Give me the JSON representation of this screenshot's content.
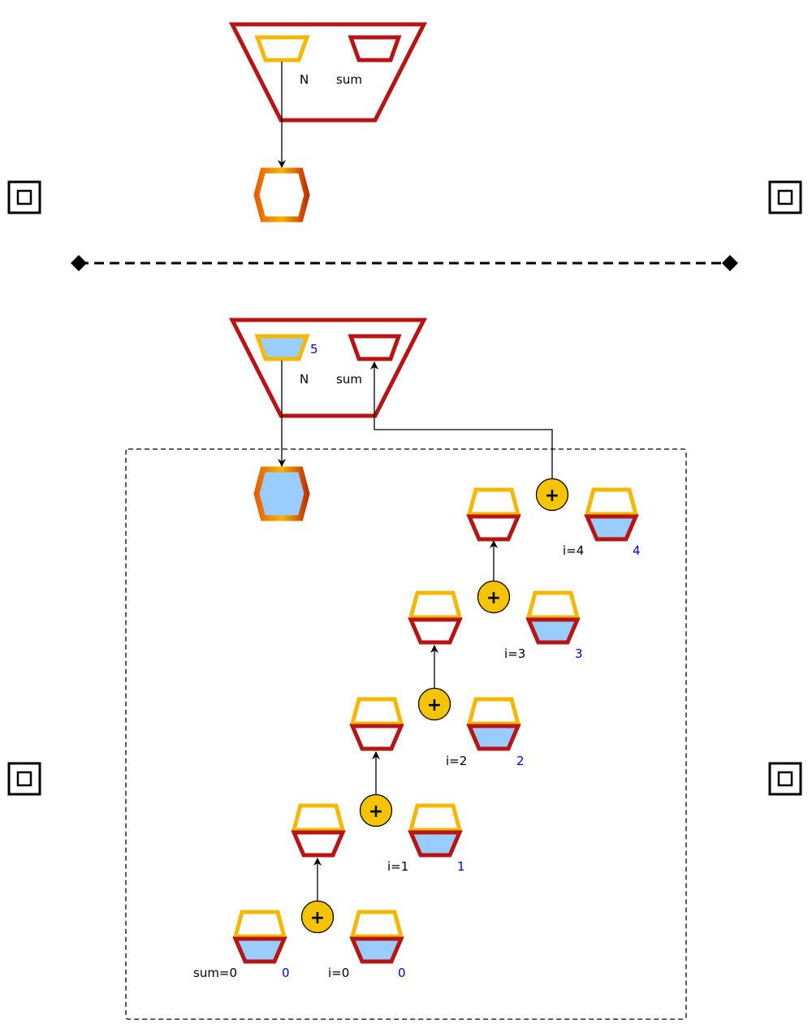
{
  "colors": {
    "red": "#b81414",
    "yellow": "#f5b800",
    "orange_dark": "#e66000",
    "fill_blue": "#99ccff",
    "plus_fill": "#f5c400",
    "value_text": "#0000ff",
    "line": "#000000"
  },
  "top_panel": {
    "function_label_n": "N",
    "function_label_sum": "sum"
  },
  "bottom_panel": {
    "function_label_n": "N",
    "function_label_sum": "sum",
    "n_value": "5",
    "iterations": [
      {
        "left_label": "sum=0",
        "left_value": "0",
        "right_label": "i=0",
        "right_value": "0"
      },
      {
        "right_label": "i=1",
        "right_value": "1"
      },
      {
        "right_label": "i=2",
        "right_value": "2"
      },
      {
        "right_label": "i=3",
        "right_value": "3"
      },
      {
        "right_label": "i=4",
        "right_value": "4"
      }
    ]
  },
  "icons": {
    "add_symbol": "+",
    "side_markers": [
      "square-target-icon",
      "square-target-icon",
      "square-target-icon",
      "square-target-icon"
    ]
  }
}
